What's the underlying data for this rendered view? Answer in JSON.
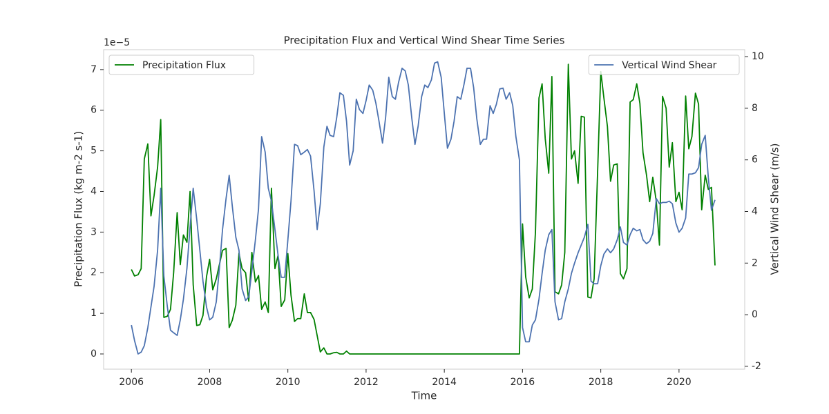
{
  "chart_data": {
    "type": "line",
    "title": "Precipitation Flux and Vertical Wind Shear Time Series",
    "xlabel": "Time",
    "ylabel": "Precipitation Flux (kg m-2 s-1)",
    "y2label": "Vertical Wind Shear (m/s)",
    "y_offset_text": "1e−5",
    "x": [
      2006.0,
      2006.08,
      2006.17,
      2006.25,
      2006.33,
      2006.42,
      2006.5,
      2006.58,
      2006.67,
      2006.75,
      2006.83,
      2006.92,
      2007.0,
      2007.08,
      2007.17,
      2007.25,
      2007.33,
      2007.42,
      2007.5,
      2007.58,
      2007.67,
      2007.75,
      2007.83,
      2007.92,
      2008.0,
      2008.08,
      2008.17,
      2008.25,
      2008.33,
      2008.42,
      2008.5,
      2008.58,
      2008.67,
      2008.75,
      2008.83,
      2008.92,
      2009.0,
      2009.08,
      2009.17,
      2009.25,
      2009.33,
      2009.42,
      2009.5,
      2009.58,
      2009.67,
      2009.75,
      2009.83,
      2009.92,
      2010.0,
      2010.08,
      2010.17,
      2010.25,
      2010.33,
      2010.42,
      2010.5,
      2010.58,
      2010.67,
      2010.75,
      2010.83,
      2010.92,
      2011.0,
      2011.08,
      2011.17,
      2011.25,
      2011.33,
      2011.42,
      2011.5,
      2011.58,
      2011.67,
      2011.75,
      2011.83,
      2011.92,
      2012.0,
      2012.08,
      2012.17,
      2012.25,
      2012.33,
      2012.42,
      2012.5,
      2012.58,
      2012.67,
      2012.75,
      2012.83,
      2012.92,
      2013.0,
      2013.08,
      2013.17,
      2013.25,
      2013.33,
      2013.42,
      2013.5,
      2013.58,
      2013.67,
      2013.75,
      2013.83,
      2013.92,
      2014.0,
      2014.08,
      2014.17,
      2014.25,
      2014.33,
      2014.42,
      2014.5,
      2014.58,
      2014.67,
      2014.75,
      2014.83,
      2014.92,
      2015.0,
      2015.08,
      2015.17,
      2015.25,
      2015.33,
      2015.42,
      2015.5,
      2015.58,
      2015.67,
      2015.75,
      2015.83,
      2015.92,
      2016.0,
      2016.08,
      2016.17,
      2016.25,
      2016.33,
      2016.42,
      2016.5,
      2016.58,
      2016.67,
      2016.75,
      2016.83,
      2016.92,
      2017.0,
      2017.08,
      2017.17,
      2017.25,
      2017.33,
      2017.42,
      2017.5,
      2017.58,
      2017.67,
      2017.75,
      2017.83,
      2017.92,
      2018.0,
      2018.08,
      2018.17,
      2018.25,
      2018.33,
      2018.42,
      2018.5,
      2018.58,
      2018.67,
      2018.75,
      2018.83,
      2018.92,
      2019.0,
      2019.08,
      2019.17,
      2019.25,
      2019.33,
      2019.42,
      2019.5,
      2019.58,
      2019.67,
      2019.75,
      2019.83,
      2019.92,
      2020.0,
      2020.08,
      2020.17,
      2020.25,
      2020.33,
      2020.42,
      2020.5,
      2020.58,
      2020.67,
      2020.75,
      2020.83,
      2020.92
    ],
    "series": [
      {
        "name": "Precipitation Flux",
        "color": "#008000",
        "axis": "y",
        "legend_loc": "upper left",
        "values": [
          2.08,
          1.92,
          1.95,
          2.1,
          4.8,
          5.17,
          3.4,
          3.9,
          4.6,
          5.77,
          0.9,
          0.93,
          1.1,
          2.0,
          3.48,
          2.2,
          2.93,
          2.75,
          4.0,
          1.7,
          0.7,
          0.72,
          0.95,
          1.9,
          2.33,
          1.58,
          1.85,
          2.2,
          2.55,
          2.6,
          0.65,
          0.83,
          1.2,
          2.48,
          2.1,
          2.0,
          1.3,
          2.5,
          1.77,
          1.93,
          1.1,
          1.28,
          1.02,
          4.08,
          2.1,
          2.43,
          1.17,
          1.33,
          2.47,
          1.45,
          0.8,
          0.87,
          0.87,
          1.48,
          1.02,
          1.02,
          0.85,
          0.45,
          0.05,
          0.15,
          0,
          0,
          0.03,
          0.04,
          0,
          0,
          0.07,
          0,
          0,
          0,
          0,
          0,
          0,
          0,
          0,
          0,
          0,
          0,
          0,
          0,
          0,
          0,
          0,
          0,
          0,
          0,
          0,
          0,
          0,
          0,
          0,
          0,
          0,
          0,
          0,
          0,
          0,
          0,
          0,
          0,
          0,
          0,
          0,
          0,
          0,
          0,
          0,
          0,
          0,
          0,
          0,
          0,
          0,
          0,
          0,
          0,
          0,
          0,
          0,
          0,
          3.2,
          1.9,
          1.38,
          1.6,
          3.0,
          6.3,
          6.65,
          5.3,
          4.45,
          6.83,
          1.53,
          1.48,
          1.7,
          2.5,
          7.13,
          4.8,
          5.0,
          4.2,
          5.85,
          5.83,
          1.4,
          1.38,
          1.85,
          4.5,
          6.95,
          6.3,
          5.6,
          4.25,
          4.65,
          4.68,
          1.98,
          1.85,
          2.1,
          6.2,
          6.26,
          6.65,
          6.17,
          4.95,
          4.4,
          3.75,
          4.35,
          3.75,
          2.68,
          6.34,
          6.05,
          4.6,
          5.2,
          3.75,
          3.98,
          3.55,
          6.35,
          5.05,
          5.35,
          6.42,
          6.15,
          3.55,
          4.4,
          4.05,
          4.1,
          2.18
        ]
      },
      {
        "name": "Vertical Wind Shear",
        "color": "#4c72b0",
        "axis": "y2",
        "legend_loc": "upper right",
        "values": [
          -0.4,
          -1.0,
          -1.52,
          -1.45,
          -1.2,
          -0.5,
          0.3,
          1.1,
          2.5,
          4.9,
          1.5,
          0.3,
          -0.6,
          -0.7,
          -0.8,
          -0.2,
          0.6,
          1.8,
          3.4,
          4.9,
          3.7,
          2.5,
          1.3,
          0.3,
          -0.2,
          -0.1,
          0.5,
          1.8,
          3.3,
          4.5,
          5.4,
          4.2,
          3.0,
          2.5,
          1.0,
          0.55,
          0.7,
          1.7,
          2.9,
          4.1,
          6.9,
          6.3,
          4.9,
          4.4,
          3.3,
          2.3,
          1.45,
          1.45,
          2.9,
          4.4,
          6.6,
          6.55,
          6.2,
          6.3,
          6.4,
          6.15,
          4.8,
          3.3,
          4.3,
          6.5,
          7.3,
          6.95,
          6.9,
          7.65,
          8.6,
          8.5,
          7.5,
          5.8,
          6.35,
          8.35,
          7.95,
          7.8,
          8.3,
          8.9,
          8.7,
          8.2,
          7.5,
          6.65,
          7.65,
          9.2,
          8.45,
          8.35,
          9.0,
          9.55,
          9.45,
          8.9,
          7.6,
          6.6,
          7.3,
          8.45,
          8.9,
          8.8,
          9.1,
          9.75,
          9.8,
          9.2,
          7.8,
          6.45,
          6.8,
          7.5,
          8.45,
          8.35,
          8.9,
          9.55,
          9.55,
          8.8,
          7.6,
          6.6,
          6.8,
          6.8,
          8.1,
          7.8,
          8.15,
          8.75,
          8.78,
          8.35,
          8.6,
          8.1,
          6.9,
          6.0,
          -0.5,
          -1.05,
          -1.05,
          -0.4,
          -0.2,
          0.6,
          1.6,
          2.5,
          3.1,
          3.3,
          0.5,
          -0.2,
          -0.15,
          0.5,
          1.0,
          1.6,
          2.0,
          2.4,
          2.7,
          3.0,
          3.5,
          1.3,
          1.2,
          1.2,
          1.9,
          2.35,
          2.55,
          2.4,
          2.55,
          2.9,
          3.4,
          2.8,
          2.7,
          3.1,
          3.35,
          3.25,
          3.3,
          2.9,
          2.75,
          2.85,
          3.15,
          4.5,
          4.3,
          4.35,
          4.35,
          4.4,
          4.3,
          3.55,
          3.2,
          3.35,
          3.75,
          5.45,
          5.45,
          5.5,
          5.7,
          6.6,
          6.95,
          5.3,
          4.05,
          4.45
        ]
      }
    ],
    "xlim": [
      2005.29,
      2021.68
    ],
    "xticks": [
      2006,
      2008,
      2010,
      2012,
      2014,
      2016,
      2018,
      2020
    ],
    "ylim": [
      -0.374,
      7.49
    ],
    "yticks": [
      0,
      1,
      2,
      3,
      4,
      5,
      6,
      7
    ],
    "y2lim": [
      -2.11,
      10.27
    ],
    "y2ticks": [
      -2,
      0,
      2,
      4,
      6,
      8,
      10
    ],
    "grid": false
  }
}
